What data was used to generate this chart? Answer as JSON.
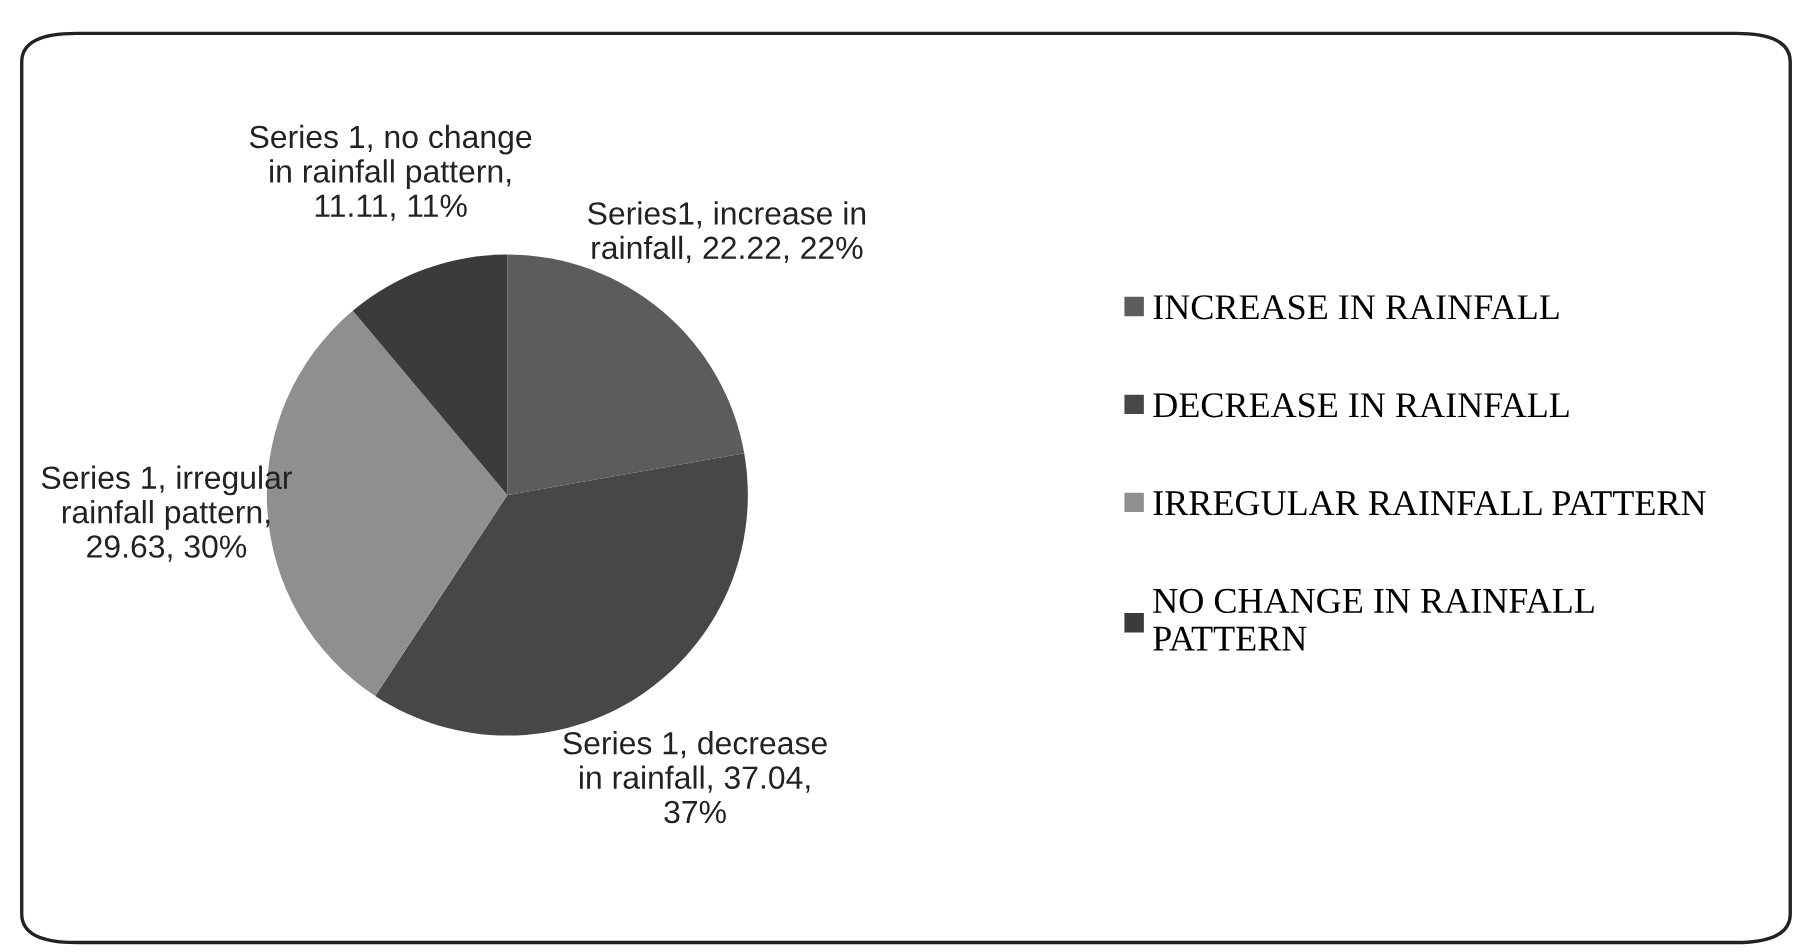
{
  "chart_data": {
    "type": "pie",
    "categories": [
      "INCREASE IN RAINFALL",
      "DECREASE IN RAINFALL",
      "IRREGULAR RAINFALL PATTERN",
      "NO CHANGE IN RAINFALL\nPATTERN"
    ],
    "values": [
      22.22,
      37.04,
      29.63,
      11.11
    ],
    "colors": [
      "#5c5c5c",
      "#474747",
      "#8f8f8f",
      "#3b3b3b"
    ],
    "value_labels": [
      "Series1, increase in\nrainfall, 22.22, 22%",
      "Series 1, decrease\nin rainfall, 37.04,\n37%",
      "Series 1, irregular\nrainfall pattern,\n29.63, 30%",
      "Series 1, no change\nin rainfall pattern,\n11.11, 11%"
    ],
    "legend": "right"
  }
}
